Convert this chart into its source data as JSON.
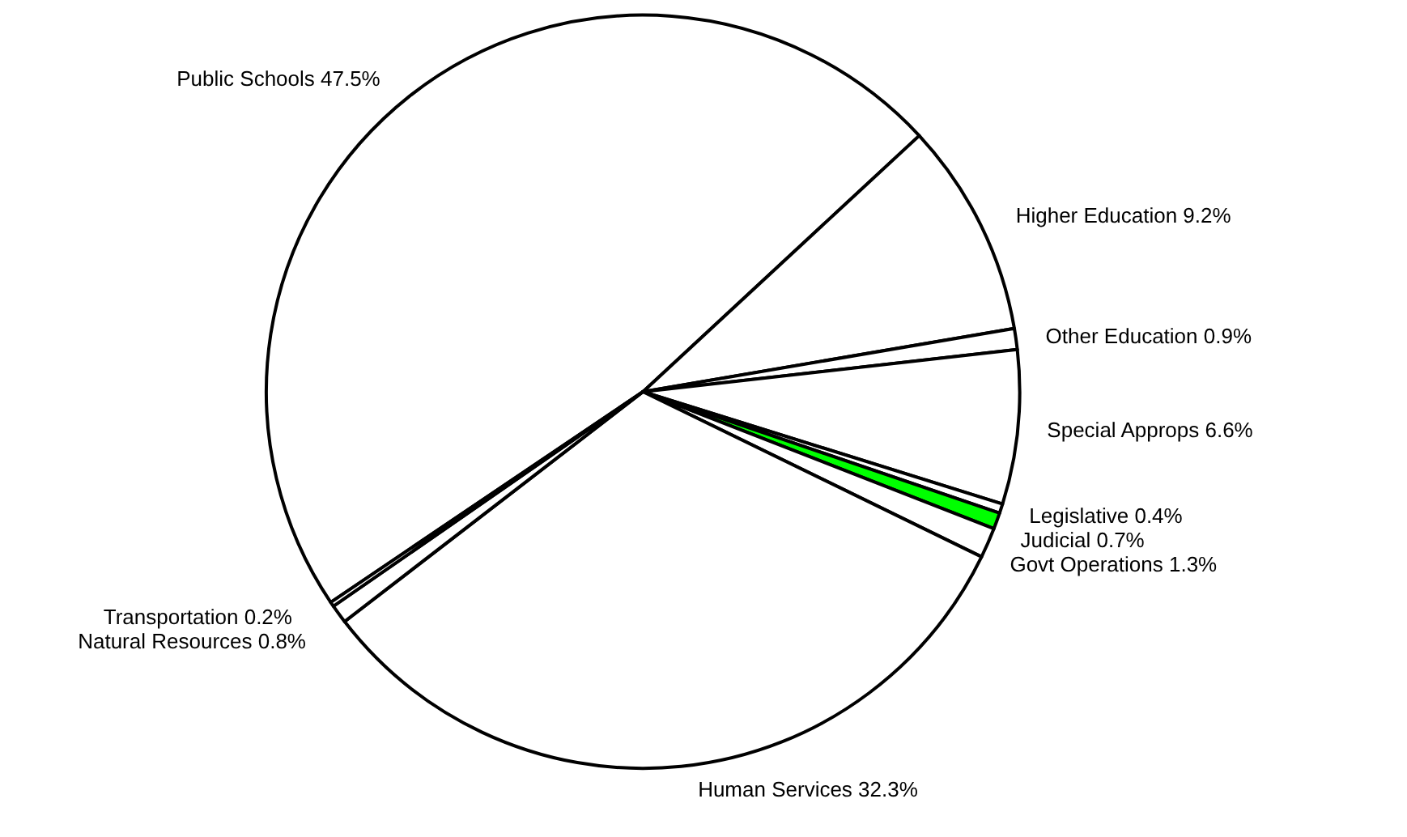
{
  "chart_data": {
    "type": "pie",
    "categories": [
      "Public Schools",
      "Higher Education",
      "Other Education",
      "Special Approps",
      "Legislative",
      "Judicial",
      "Govt Operations",
      "Human Services",
      "Natural Resources",
      "Transportation"
    ],
    "values": [
      47.5,
      9.2,
      0.9,
      6.6,
      0.4,
      0.7,
      1.3,
      32.3,
      0.8,
      0.2
    ],
    "colors": [
      "#ffffff",
      "#ffffff",
      "#ffffff",
      "#ffffff",
      "#ffffff",
      "#00ff00",
      "#ffffff",
      "#ffffff",
      "#ffffff",
      "#ffffff"
    ],
    "value_labels": [
      "47.5%",
      "9.2%",
      "0.9%",
      "6.6%",
      "0.4%",
      "0.7%",
      "1.3%",
      "32.3%",
      "0.8%",
      "0.2%"
    ],
    "legend": false
  }
}
